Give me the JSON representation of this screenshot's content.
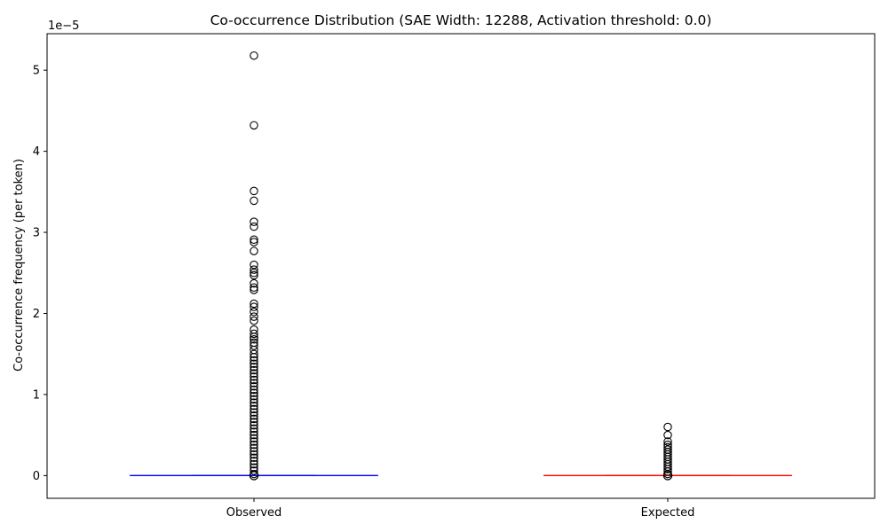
{
  "chart_data": {
    "type": "box",
    "title": "Co-occurrence Distribution (SAE Width: 12288, Activation threshold: 0.0)",
    "xlabel": "",
    "ylabel": "Co-occurrence frequency (per token)",
    "offset_label": "1e−5",
    "ylim": [
      -0.28,
      5.45
    ],
    "yticks": [
      0,
      1,
      2,
      3,
      4,
      5
    ],
    "grid": false,
    "categories": [
      "Observed",
      "Expected"
    ],
    "series": [
      {
        "category": "Observed",
        "color": "#0000ff",
        "median": 0.0,
        "q1": 0.0,
        "q3": 0.0,
        "whisker_low": 0.0,
        "whisker_high": 0.0,
        "outliers": [
          5.18,
          4.32,
          3.51,
          3.39,
          3.13,
          3.07,
          2.91,
          2.88,
          2.77,
          2.6,
          2.54,
          2.5,
          2.47,
          2.37,
          2.32,
          2.29,
          2.12,
          2.08,
          2.02,
          1.96,
          1.91,
          1.8,
          1.75,
          1.71,
          1.68,
          1.64,
          1.6,
          1.55,
          1.5,
          1.46,
          1.42,
          1.38,
          1.34,
          1.3,
          1.26,
          1.22,
          1.18,
          1.14,
          1.1,
          1.06,
          1.02,
          0.98,
          0.94,
          0.9,
          0.86,
          0.82,
          0.78,
          0.74,
          0.7,
          0.66,
          0.62,
          0.58,
          0.54,
          0.5,
          0.46,
          0.42,
          0.38,
          0.34,
          0.3,
          0.26,
          0.22,
          0.18,
          0.14,
          0.1,
          0.06,
          0.02
        ]
      },
      {
        "category": "Expected",
        "color": "#ff0000",
        "median": 0.0,
        "q1": 0.0,
        "q3": 0.0,
        "whisker_low": 0.0,
        "whisker_high": 0.0,
        "outliers": [
          0.6,
          0.5,
          0.42,
          0.38,
          0.35,
          0.32,
          0.29,
          0.26,
          0.23,
          0.2,
          0.17,
          0.14,
          0.11,
          0.08,
          0.05,
          0.02
        ]
      }
    ]
  }
}
